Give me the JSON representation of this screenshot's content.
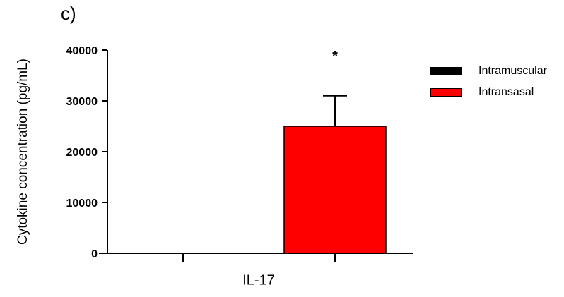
{
  "panel_label": "c)",
  "chart_data": {
    "type": "bar",
    "categories": [
      "IL-17"
    ],
    "series": [
      {
        "name": "Intramuscular",
        "values": [
          0
        ],
        "color": "#000000"
      },
      {
        "name": "Intransasal",
        "values": [
          25000
        ],
        "error": [
          6000
        ],
        "color": "#ff0000",
        "annotation": "*"
      }
    ],
    "ylabel": "Cytokine concentration (pg/mL)",
    "xlabel": "",
    "ylim": [
      0,
      40000
    ],
    "yticks": [
      0,
      10000,
      20000,
      30000,
      40000
    ],
    "grid": false,
    "legend_position": "right"
  }
}
